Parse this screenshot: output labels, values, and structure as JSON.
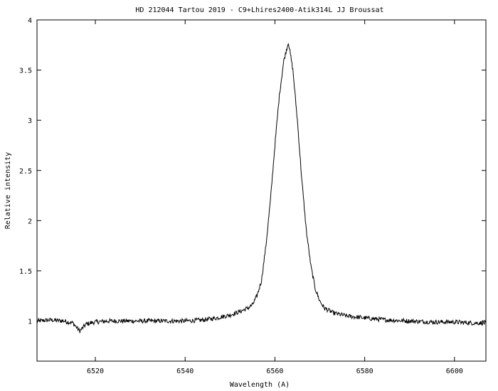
{
  "chart_data": {
    "type": "line",
    "title": "HD 212044  Tartou 2019 - C9+Lhires2400-Atik314L    JJ Broussat",
    "xlabel": "Wavelength (A)",
    "ylabel": "Relative intensity",
    "xlim": [
      6507,
      6607
    ],
    "ylim": [
      0.6,
      4.0
    ],
    "xticks": [
      6520,
      6540,
      6560,
      6580,
      6600
    ],
    "yticks": [
      1,
      1.5,
      2,
      2.5,
      3,
      3.5,
      4
    ],
    "ytick_labels": [
      "1",
      "1.5",
      "2",
      "2.5",
      "3",
      "3.5",
      "4"
    ],
    "grid": false,
    "legend": "none",
    "series": [
      {
        "color": "#000000",
        "points": [
          [
            6507,
            1.0
          ],
          [
            6510,
            1.01
          ],
          [
            6513,
            1.0
          ],
          [
            6515,
            0.98
          ],
          [
            6516.5,
            0.9
          ],
          [
            6518,
            0.97
          ],
          [
            6520,
            0.99
          ],
          [
            6523,
            1.0
          ],
          [
            6527,
            1.0
          ],
          [
            6530,
            1.0
          ],
          [
            6535,
            1.0
          ],
          [
            6540,
            1.0
          ],
          [
            6544,
            1.01
          ],
          [
            6547,
            1.03
          ],
          [
            6550,
            1.06
          ],
          [
            6552,
            1.09
          ],
          [
            6554,
            1.13
          ],
          [
            6555,
            1.16
          ],
          [
            6556,
            1.25
          ],
          [
            6557,
            1.4
          ],
          [
            6558,
            1.75
          ],
          [
            6559,
            2.2
          ],
          [
            6560,
            2.75
          ],
          [
            6561,
            3.25
          ],
          [
            6562,
            3.6
          ],
          [
            6563,
            3.78
          ],
          [
            6564,
            3.5
          ],
          [
            6565,
            3.0
          ],
          [
            6566,
            2.4
          ],
          [
            6567,
            1.9
          ],
          [
            6568,
            1.55
          ],
          [
            6569,
            1.32
          ],
          [
            6570,
            1.2
          ],
          [
            6571,
            1.13
          ],
          [
            6573,
            1.08
          ],
          [
            6576,
            1.05
          ],
          [
            6580,
            1.03
          ],
          [
            6585,
            1.01
          ],
          [
            6590,
            1.0
          ],
          [
            6595,
            0.99
          ],
          [
            6600,
            0.99
          ],
          [
            6604,
            0.98
          ],
          [
            6607,
            0.98
          ]
        ]
      }
    ]
  }
}
